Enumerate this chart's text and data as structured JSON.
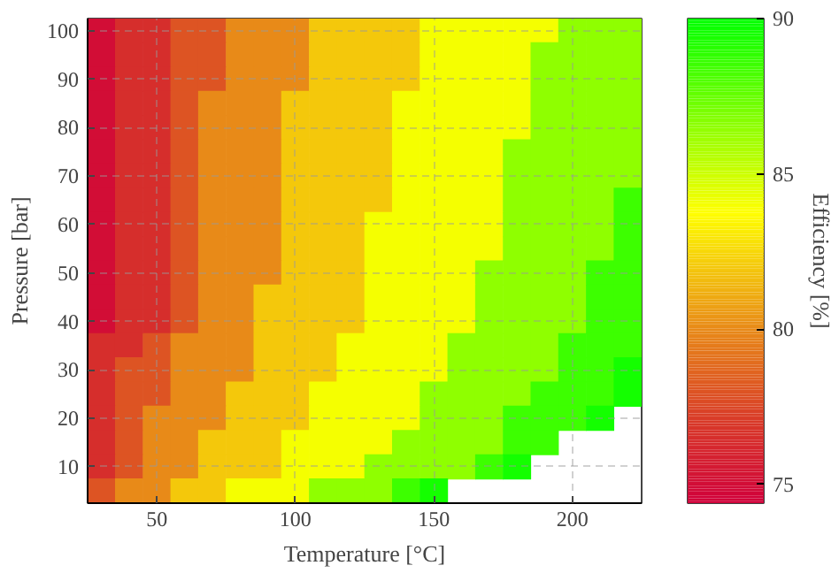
{
  "chart_data": {
    "type": "heatmap",
    "xlabel": "Temperature [°C]",
    "ylabel": "Pressure [bar]",
    "clabel": "Efficiency [%]",
    "categories": [
      null,
      null,
      "50",
      null,
      null,
      null,
      null,
      "100",
      null,
      null,
      null,
      null,
      "150",
      null,
      null,
      null,
      null,
      "200",
      null,
      null
    ],
    "y_categories": [
      "100",
      null,
      "90",
      null,
      "80",
      null,
      "70",
      null,
      "60",
      null,
      "50",
      null,
      "40",
      null,
      "30",
      null,
      "20",
      null,
      "10",
      null
    ],
    "cells": [
      [
        75,
        76.5,
        76.5,
        78,
        78,
        80,
        80,
        80,
        82,
        82,
        82,
        82,
        84,
        84,
        84,
        84,
        84,
        86.5,
        86.5,
        86.5
      ],
      [
        75,
        76.5,
        76.5,
        78,
        78,
        80,
        80,
        80,
        82,
        82,
        82,
        82,
        84,
        84,
        84,
        84,
        86.5,
        86.5,
        86.5,
        86.5
      ],
      [
        75,
        76.5,
        76.5,
        78,
        78,
        80,
        80,
        80,
        82,
        82,
        82,
        82,
        84,
        84,
        84,
        84,
        86.5,
        86.5,
        86.5,
        86.5
      ],
      [
        75,
        76.5,
        76.5,
        78,
        80,
        80,
        80,
        82,
        82,
        82,
        82,
        84,
        84,
        84,
        84,
        84,
        86.5,
        86.5,
        86.5,
        86.5
      ],
      [
        75,
        76.5,
        76.5,
        78,
        80,
        80,
        80,
        82,
        82,
        82,
        82,
        84,
        84,
        84,
        84,
        84,
        86.5,
        86.5,
        86.5,
        86.5
      ],
      [
        75,
        76.5,
        76.5,
        78,
        80,
        80,
        80,
        82,
        82,
        82,
        82,
        84,
        84,
        84,
        84,
        86.5,
        86.5,
        86.5,
        86.5,
        86.5
      ],
      [
        75,
        76.5,
        76.5,
        78,
        80,
        80,
        80,
        82,
        82,
        82,
        82,
        84,
        84,
        84,
        84,
        86.5,
        86.5,
        86.5,
        86.5,
        86.5
      ],
      [
        75,
        76.5,
        76.5,
        78,
        80,
        80,
        80,
        82,
        82,
        82,
        82,
        84,
        84,
        84,
        84,
        86.5,
        86.5,
        86.5,
        86.5,
        88.5
      ],
      [
        75,
        76.5,
        76.5,
        78,
        80,
        80,
        80,
        82,
        82,
        82,
        84,
        84,
        84,
        84,
        84,
        86.5,
        86.5,
        86.5,
        86.5,
        88.5
      ],
      [
        75,
        76.5,
        76.5,
        78,
        80,
        80,
        80,
        82,
        82,
        82,
        84,
        84,
        84,
        84,
        84,
        86.5,
        86.5,
        86.5,
        86.5,
        88.5
      ],
      [
        75,
        76.5,
        76.5,
        78,
        80,
        80,
        80,
        82,
        82,
        82,
        84,
        84,
        84,
        84,
        86.5,
        86.5,
        86.5,
        86.5,
        88.5,
        88.5
      ],
      [
        75,
        76.5,
        76.5,
        78,
        80,
        80,
        82,
        82,
        82,
        82,
        84,
        84,
        84,
        84,
        86.5,
        86.5,
        86.5,
        86.5,
        88.5,
        88.5
      ],
      [
        75,
        76.5,
        76.5,
        78,
        80,
        80,
        82,
        82,
        82,
        82,
        84,
        84,
        84,
        84,
        86.5,
        86.5,
        86.5,
        86.5,
        88.5,
        88.5
      ],
      [
        76.5,
        76.5,
        78,
        80,
        80,
        80,
        82,
        82,
        82,
        84,
        84,
        84,
        84,
        86.5,
        86.5,
        86.5,
        86.5,
        88.5,
        88.5,
        88.5
      ],
      [
        76.5,
        78,
        78,
        80,
        80,
        80,
        82,
        82,
        82,
        84,
        84,
        84,
        84,
        86.5,
        86.5,
        86.5,
        86.5,
        88.5,
        88.5,
        89.5
      ],
      [
        76.5,
        78,
        78,
        80,
        80,
        82,
        82,
        82,
        84,
        84,
        84,
        84,
        86.5,
        86.5,
        86.5,
        86.5,
        88.5,
        88.5,
        88.5,
        89.5
      ],
      [
        76.5,
        78,
        80,
        80,
        80,
        82,
        82,
        82,
        84,
        84,
        84,
        84,
        86.5,
        86.5,
        86.5,
        88.5,
        88.5,
        88.5,
        89.5,
        null
      ],
      [
        76.5,
        78,
        80,
        80,
        82,
        82,
        82,
        84,
        84,
        84,
        84,
        86.5,
        86.5,
        86.5,
        86.5,
        88.5,
        88.5,
        null,
        null,
        null
      ],
      [
        76.5,
        78,
        80,
        80,
        82,
        82,
        82,
        84,
        84,
        84,
        86.5,
        86.5,
        86.5,
        86.5,
        88.5,
        89.5,
        null,
        null,
        null,
        null
      ],
      [
        78,
        80,
        80,
        82,
        82,
        84,
        84,
        84,
        86.5,
        86.5,
        86.5,
        88.5,
        89.5,
        null,
        null,
        null,
        null,
        null,
        null,
        null
      ]
    ],
    "clim": [
      74.4,
      90
    ],
    "cticks": [
      75,
      80,
      85,
      90
    ],
    "grid": true
  }
}
